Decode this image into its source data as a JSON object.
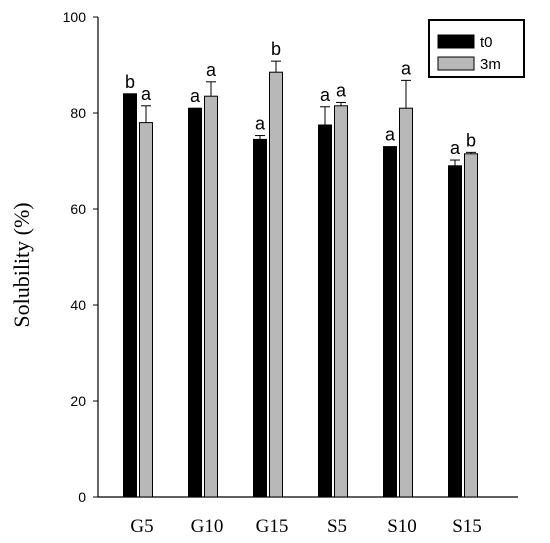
{
  "chart_data": {
    "type": "bar",
    "categories": [
      "G5",
      "G10",
      "G15",
      "S5",
      "S10",
      "S15"
    ],
    "series": [
      {
        "name": "t0",
        "color": "#000000",
        "values": [
          84,
          81,
          74.5,
          77.5,
          73,
          69
        ],
        "errors": [
          0,
          0,
          0.8,
          3.8,
          0,
          1.2
        ],
        "letters": [
          "b",
          "a",
          "a",
          "a",
          "a",
          "a"
        ]
      },
      {
        "name": "3m",
        "color": "#b8b8b8",
        "values": [
          78,
          83.5,
          88.5,
          81.5,
          81,
          71.5
        ],
        "errors": [
          3.5,
          3.0,
          2.3,
          0.7,
          5.8,
          0.3
        ],
        "letters": [
          "a",
          "a",
          "b",
          "a",
          "a",
          "b"
        ]
      }
    ],
    "ylabel": "Solubility (%)",
    "xlabel": "",
    "ylim": [
      0,
      100
    ],
    "yticks": [
      0,
      20,
      40,
      60,
      80,
      100
    ],
    "grid": false,
    "legend_position": "top-right"
  }
}
